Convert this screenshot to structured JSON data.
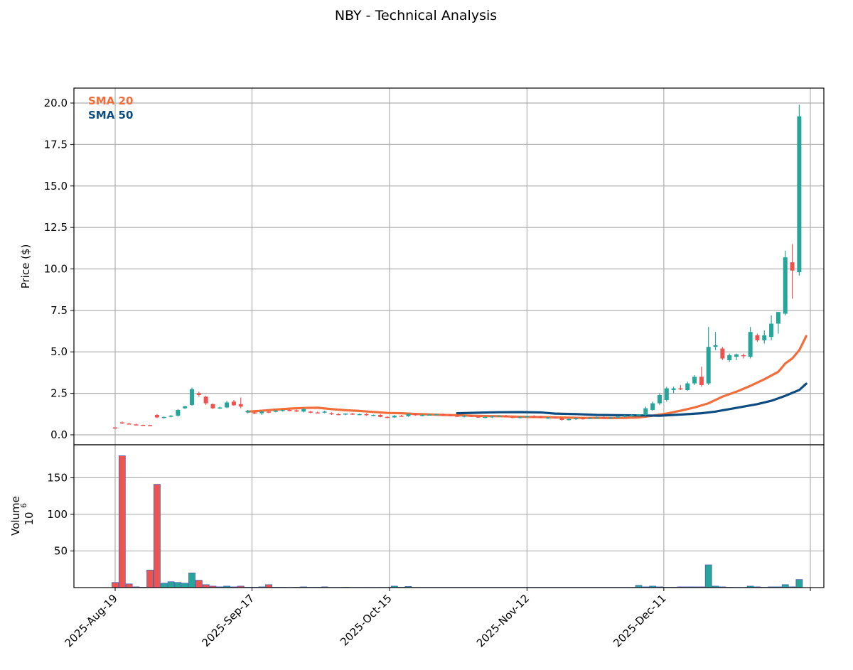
{
  "chart_data": {
    "title": "NBY - Technical Analysis",
    "type": "candlestick",
    "colors": {
      "up": "#26a69a",
      "down": "#ef5350",
      "sma20": "#f26d3a",
      "sma50": "#0d4c80",
      "volume_edge": "#4a63b3"
    },
    "x_tick_labels": [
      "2025-Aug-19",
      "2025-Sep-17",
      "2025-Oct-15",
      "2025-Nov-12",
      "2025-Dec-11"
    ],
    "price_panel": {
      "ylabel": "Price ($)",
      "ylim": [
        -0.6,
        20.9
      ],
      "yticks": [
        0.0,
        2.5,
        5.0,
        7.5,
        10.0,
        12.5,
        15.0,
        17.5,
        20.0
      ],
      "ytick_labels": [
        "0.0",
        "2.5",
        "5.0",
        "7.5",
        "10.0",
        "12.5",
        "15.0",
        "17.5",
        "20.0"
      ],
      "grid": true,
      "legend_position": "top-left",
      "legend": [
        "SMA 20",
        "SMA 50"
      ]
    },
    "volume_panel": {
      "ylabel": "Volume",
      "unit_label": "10",
      "unit_exponent": "6",
      "ylim": [
        0,
        195
      ],
      "yticks": [
        50,
        100,
        150
      ],
      "ytick_labels": [
        "50",
        "100",
        "150"
      ],
      "grid": true
    },
    "candles": [
      [
        0,
        0.45,
        0.45,
        0.35,
        0.38
      ],
      [
        1,
        0.75,
        0.8,
        0.65,
        0.7
      ],
      [
        2,
        0.68,
        0.72,
        0.62,
        0.65
      ],
      [
        3,
        0.63,
        0.67,
        0.58,
        0.61
      ],
      [
        4,
        0.6,
        0.62,
        0.56,
        0.58
      ],
      [
        5,
        0.58,
        0.6,
        0.55,
        0.57
      ],
      [
        6,
        1.2,
        1.25,
        1.0,
        1.05
      ],
      [
        7,
        1.02,
        1.1,
        0.98,
        1.08
      ],
      [
        8,
        1.1,
        1.2,
        1.05,
        1.15
      ],
      [
        9,
        1.15,
        1.55,
        1.1,
        1.5
      ],
      [
        10,
        1.6,
        1.75,
        1.55,
        1.72
      ],
      [
        11,
        1.8,
        2.85,
        1.75,
        2.75
      ],
      [
        12,
        2.5,
        2.6,
        2.3,
        2.4
      ],
      [
        13,
        2.3,
        2.35,
        1.8,
        1.9
      ],
      [
        14,
        1.85,
        1.9,
        1.55,
        1.6
      ],
      [
        15,
        1.6,
        1.7,
        1.55,
        1.65
      ],
      [
        16,
        1.65,
        2.05,
        1.6,
        1.95
      ],
      [
        17,
        2.0,
        2.1,
        1.75,
        1.78
      ],
      [
        18,
        1.85,
        2.25,
        1.6,
        1.7
      ],
      [
        19,
        1.35,
        1.5,
        1.3,
        1.45
      ],
      [
        20,
        1.35,
        1.4,
        1.25,
        1.3
      ],
      [
        21,
        1.3,
        1.45,
        1.2,
        1.4
      ],
      [
        22,
        1.4,
        1.45,
        1.3,
        1.35
      ],
      [
        23,
        1.4,
        1.5,
        1.35,
        1.45
      ],
      [
        24,
        1.45,
        1.52,
        1.4,
        1.5
      ],
      [
        25,
        1.5,
        1.55,
        1.42,
        1.45
      ],
      [
        26,
        1.48,
        1.52,
        1.38,
        1.4
      ],
      [
        27,
        1.4,
        1.6,
        1.35,
        1.55
      ],
      [
        28,
        1.4,
        1.45,
        1.3,
        1.35
      ],
      [
        29,
        1.35,
        1.4,
        1.28,
        1.32
      ],
      [
        30,
        1.35,
        1.45,
        1.3,
        1.4
      ],
      [
        31,
        1.3,
        1.35,
        1.2,
        1.25
      ],
      [
        32,
        1.25,
        1.3,
        1.18,
        1.22
      ],
      [
        33,
        1.22,
        1.3,
        1.18,
        1.28
      ],
      [
        34,
        1.28,
        1.32,
        1.2,
        1.22
      ],
      [
        35,
        1.22,
        1.28,
        1.18,
        1.25
      ],
      [
        36,
        1.25,
        1.3,
        1.15,
        1.18
      ],
      [
        37,
        1.18,
        1.22,
        1.12,
        1.2
      ],
      [
        38,
        1.2,
        1.25,
        1.05,
        1.08
      ],
      [
        39,
        1.08,
        1.12,
        1.0,
        1.05
      ],
      [
        40,
        1.05,
        1.2,
        1.02,
        1.15
      ],
      [
        41,
        1.15,
        1.2,
        1.1,
        1.12
      ],
      [
        42,
        1.12,
        1.3,
        1.08,
        1.25
      ],
      [
        43,
        1.25,
        1.3,
        1.15,
        1.18
      ],
      [
        44,
        1.18,
        1.25,
        1.12,
        1.2
      ],
      [
        45,
        1.2,
        1.25,
        1.15,
        1.22
      ],
      [
        46,
        1.22,
        1.28,
        1.18,
        1.24
      ],
      [
        47,
        1.24,
        1.28,
        1.18,
        1.2
      ],
      [
        48,
        1.2,
        1.25,
        1.12,
        1.15
      ],
      [
        49,
        1.15,
        1.2,
        1.08,
        1.12
      ],
      [
        50,
        1.12,
        1.18,
        1.05,
        1.15
      ],
      [
        51,
        1.15,
        1.2,
        1.08,
        1.1
      ],
      [
        52,
        1.1,
        1.15,
        1.02,
        1.05
      ],
      [
        53,
        1.05,
        1.12,
        1.0,
        1.08
      ],
      [
        54,
        1.08,
        1.15,
        1.02,
        1.12
      ],
      [
        55,
        1.12,
        1.18,
        1.08,
        1.15
      ],
      [
        56,
        1.15,
        1.2,
        1.05,
        1.08
      ],
      [
        57,
        1.08,
        1.12,
        1.0,
        1.05
      ],
      [
        58,
        1.05,
        1.1,
        0.98,
        1.08
      ],
      [
        59,
        1.08,
        1.15,
        1.02,
        1.12
      ],
      [
        60,
        1.12,
        1.18,
        1.05,
        1.1
      ],
      [
        61,
        1.1,
        1.15,
        1.0,
        1.02
      ],
      [
        62,
        1.02,
        1.08,
        0.95,
        1.05
      ],
      [
        63,
        1.05,
        1.1,
        0.98,
        1.0
      ],
      [
        64,
        1.0,
        1.05,
        0.85,
        0.9
      ],
      [
        65,
        0.9,
        1.0,
        0.85,
        0.95
      ],
      [
        66,
        0.95,
        1.05,
        0.9,
        1.0
      ],
      [
        67,
        1.0,
        1.05,
        0.92,
        0.98
      ],
      [
        68,
        0.98,
        1.05,
        0.95,
        1.02
      ],
      [
        69,
        1.02,
        1.1,
        1.0,
        1.05
      ],
      [
        70,
        1.05,
        1.1,
        1.0,
        1.02
      ],
      [
        71,
        1.02,
        1.08,
        0.98,
        1.05
      ],
      [
        72,
        1.05,
        1.15,
        1.0,
        1.1
      ],
      [
        73,
        1.1,
        1.2,
        1.05,
        1.15
      ],
      [
        74,
        1.15,
        1.25,
        1.1,
        1.2
      ],
      [
        75,
        1.2,
        1.25,
        1.15,
        1.22
      ],
      [
        76,
        1.2,
        1.7,
        1.15,
        1.6
      ],
      [
        77,
        1.5,
        2.0,
        1.45,
        1.9
      ],
      [
        78,
        1.9,
        2.5,
        1.8,
        2.4
      ],
      [
        79,
        2.1,
        2.9,
        2.0,
        2.8
      ],
      [
        80,
        2.7,
        2.9,
        2.5,
        2.8
      ],
      [
        81,
        2.8,
        3.0,
        2.7,
        2.75
      ],
      [
        82,
        2.7,
        3.2,
        2.65,
        3.1
      ],
      [
        83,
        3.1,
        3.6,
        3.0,
        3.5
      ],
      [
        84,
        3.5,
        4.1,
        2.9,
        3.0
      ],
      [
        85,
        3.1,
        6.5,
        3.0,
        5.3
      ],
      [
        86,
        5.3,
        6.2,
        5.1,
        5.4
      ],
      [
        87,
        5.2,
        5.3,
        4.5,
        4.6
      ],
      [
        88,
        4.5,
        4.9,
        4.4,
        4.8
      ],
      [
        89,
        4.7,
        4.9,
        4.5,
        4.85
      ],
      [
        90,
        4.8,
        4.9,
        4.6,
        4.75
      ],
      [
        91,
        4.7,
        6.5,
        4.6,
        6.2
      ],
      [
        92,
        6.0,
        6.1,
        5.6,
        5.7
      ],
      [
        93,
        5.7,
        6.3,
        5.5,
        6.0
      ],
      [
        94,
        5.9,
        7.2,
        5.7,
        6.7
      ],
      [
        95,
        6.7,
        7.4,
        6.1,
        7.4
      ],
      [
        96,
        7.3,
        11.1,
        7.2,
        10.7
      ],
      [
        97,
        10.4,
        11.5,
        8.2,
        9.9
      ],
      [
        98,
        9.8,
        19.9,
        9.6,
        19.2
      ]
    ],
    "volume_millions": [
      7,
      180,
      5,
      1,
      0.5,
      24,
      141,
      6,
      8,
      7,
      6,
      20,
      10,
      4,
      2,
      1,
      2,
      1,
      2,
      0.5,
      0.5,
      1,
      4,
      0.5,
      0.5,
      0.3,
      0.5,
      1,
      0.5,
      0.5,
      1,
      0.3,
      0.3,
      0.5,
      0.3,
      0.3,
      0.3,
      0.2,
      0.3,
      0.3,
      2,
      0.5,
      1.5,
      0.3,
      0.3,
      0.3,
      0.3,
      0.3,
      0.3,
      0.3,
      0.3,
      0.3,
      0.3,
      0.3,
      0.3,
      0.3,
      0.3,
      0.3,
      0.3,
      0.3,
      0.3,
      0.3,
      0.3,
      0.3,
      0.3,
      0.3,
      0.3,
      0.3,
      0.3,
      0.3,
      0.3,
      0.3,
      0.3,
      0.3,
      0.3,
      3,
      1,
      2,
      1,
      0.5,
      0.5,
      1,
      1,
      1,
      1,
      31,
      2,
      1,
      0.5,
      0.3,
      0.3,
      2,
      1,
      0.5,
      1,
      1,
      4,
      1,
      11
    ],
    "sma20_points": [
      [
        19,
        1.4
      ],
      [
        21,
        1.45
      ],
      [
        23,
        1.52
      ],
      [
        25,
        1.58
      ],
      [
        27,
        1.62
      ],
      [
        29,
        1.63
      ],
      [
        31,
        1.55
      ],
      [
        33,
        1.48
      ],
      [
        35,
        1.44
      ],
      [
        37,
        1.38
      ],
      [
        39,
        1.32
      ],
      [
        41,
        1.3
      ],
      [
        43,
        1.26
      ],
      [
        45,
        1.23
      ],
      [
        47,
        1.2
      ],
      [
        49,
        1.18
      ],
      [
        51,
        1.15
      ],
      [
        53,
        1.13
      ],
      [
        55,
        1.12
      ],
      [
        57,
        1.1
      ],
      [
        59,
        1.08
      ],
      [
        61,
        1.07
      ],
      [
        63,
        1.05
      ],
      [
        65,
        1.03
      ],
      [
        67,
        1.02
      ],
      [
        69,
        1.02
      ],
      [
        71,
        1.01
      ],
      [
        73,
        1.02
      ],
      [
        75,
        1.05
      ],
      [
        77,
        1.15
      ],
      [
        79,
        1.28
      ],
      [
        81,
        1.45
      ],
      [
        83,
        1.65
      ],
      [
        85,
        1.9
      ],
      [
        87,
        2.3
      ],
      [
        89,
        2.6
      ],
      [
        91,
        2.95
      ],
      [
        93,
        3.35
      ],
      [
        95,
        3.8
      ],
      [
        96,
        4.3
      ],
      [
        97,
        4.6
      ],
      [
        98,
        5.1
      ],
      [
        99,
        5.95
      ]
    ],
    "sma50_points": [
      [
        49,
        1.3
      ],
      [
        52,
        1.33
      ],
      [
        55,
        1.36
      ],
      [
        58,
        1.37
      ],
      [
        61,
        1.35
      ],
      [
        63,
        1.28
      ],
      [
        66,
        1.25
      ],
      [
        69,
        1.2
      ],
      [
        72,
        1.18
      ],
      [
        75,
        1.17
      ],
      [
        78,
        1.15
      ],
      [
        81,
        1.22
      ],
      [
        84,
        1.3
      ],
      [
        86,
        1.4
      ],
      [
        88,
        1.55
      ],
      [
        90,
        1.7
      ],
      [
        92,
        1.85
      ],
      [
        94,
        2.05
      ],
      [
        96,
        2.35
      ],
      [
        98,
        2.7
      ],
      [
        99,
        3.08
      ]
    ],
    "x_tick_positions": [
      0,
      19.6,
      39.3,
      59.0,
      78.6
    ]
  }
}
